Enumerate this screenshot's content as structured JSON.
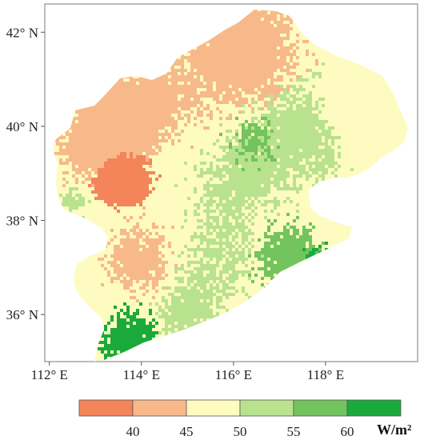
{
  "map": {
    "lat_ticks": [
      {
        "label": "42° N",
        "value": 42
      },
      {
        "label": "40° N",
        "value": 40
      },
      {
        "label": "38° N",
        "value": 38
      },
      {
        "label": "36° N",
        "value": 36
      }
    ],
    "lon_ticks": [
      {
        "label": "112° E",
        "value": 112
      },
      {
        "label": "114° E",
        "value": 114
      },
      {
        "label": "116° E",
        "value": 116
      },
      {
        "label": "118° E",
        "value": 118
      }
    ],
    "lon_range": [
      111.9,
      120.0
    ],
    "lat_range": [
      35.0,
      42.6
    ],
    "legend": {
      "classes": [
        {
          "range": "<40",
          "color": "#f4845a"
        },
        {
          "range": "40-45",
          "color": "#f8b98a"
        },
        {
          "range": "45-50",
          "color": "#fdfbbf"
        },
        {
          "range": "50-55",
          "color": "#b9e28f"
        },
        {
          "range": "55-60",
          "color": "#73c45d"
        },
        {
          "range": ">60",
          "color": "#1aaa3c"
        }
      ],
      "labels": [
        "40",
        "45",
        "50",
        "55",
        "60"
      ],
      "unit": "W/m²"
    }
  }
}
